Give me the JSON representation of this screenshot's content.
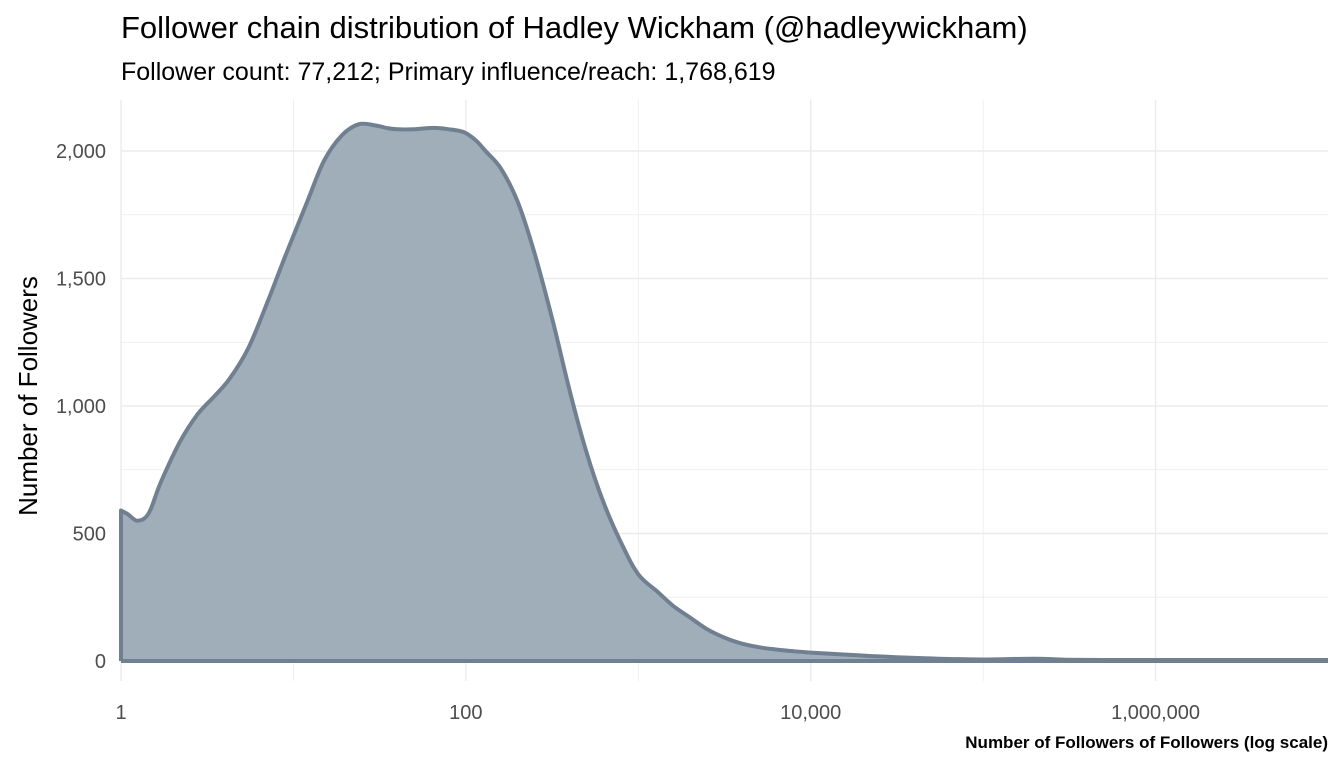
{
  "chart_data": {
    "type": "area",
    "title": "Follower chain distribution of Hadley Wickham (@hadleywickham)",
    "subtitle": "Follower count: 77,212; Primary influence/reach: 1,768,619",
    "xlabel": "Number of Followers of Followers (log scale)",
    "ylabel": "Number of Followers",
    "x_scale": "log10",
    "xlim": [
      1,
      10000000
    ],
    "ylim": [
      0,
      2200
    ],
    "x_ticks": [
      1,
      100,
      10000,
      1000000
    ],
    "x_tick_labels": [
      "1",
      "100",
      "10,000",
      "1,000,000"
    ],
    "y_ticks": [
      0,
      500,
      1000,
      1500,
      2000
    ],
    "y_tick_labels": [
      "0",
      "500",
      "1,000",
      "1,500",
      "2,000"
    ],
    "grid": true,
    "fill_color": "#a0aeba",
    "line_color": "#708090",
    "x": [
      1,
      1.1,
      1.25,
      1.45,
      1.7,
      2.2,
      2.8,
      3.5,
      4.3,
      5.5,
      7,
      9,
      12,
      15,
      19,
      24,
      30,
      35,
      40,
      50,
      60,
      70,
      80,
      90,
      100,
      115,
      130,
      160,
      200,
      250,
      320,
      400,
      500,
      630,
      800,
      1000,
      1300,
      1600,
      2000,
      2500,
      3200,
      4000,
      5000,
      6300,
      8000,
      10000,
      16000,
      25000,
      40000,
      63000,
      100000,
      200000,
      300000,
      500000,
      1000000,
      2000000,
      4000000,
      10000000
    ],
    "values": [
      590,
      575,
      550,
      580,
      700,
      860,
      970,
      1040,
      1110,
      1230,
      1400,
      1590,
      1800,
      1960,
      2060,
      2105,
      2100,
      2090,
      2085,
      2085,
      2090,
      2090,
      2085,
      2080,
      2070,
      2040,
      2000,
      1930,
      1800,
      1600,
      1330,
      1060,
      820,
      620,
      460,
      340,
      270,
      215,
      170,
      125,
      90,
      68,
      54,
      45,
      38,
      33,
      25,
      18,
      12,
      8,
      6,
      9,
      5,
      4,
      4,
      4,
      4,
      4
    ]
  }
}
